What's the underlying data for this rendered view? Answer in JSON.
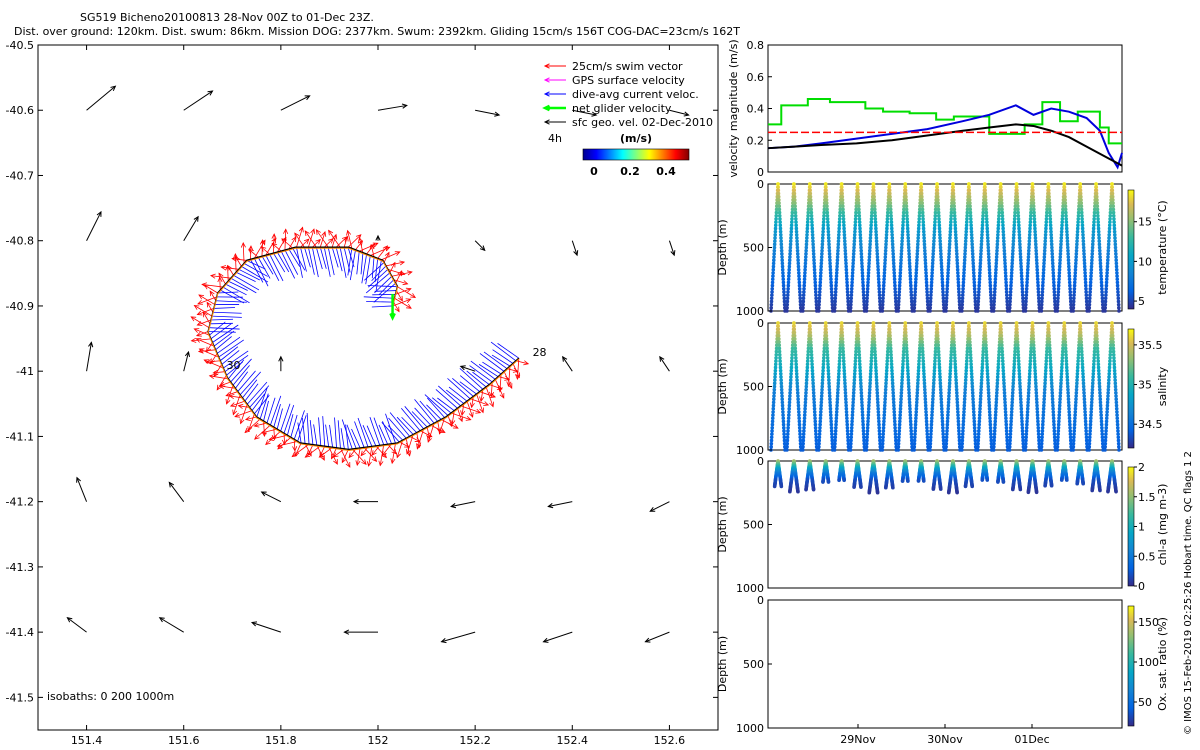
{
  "header": {
    "title_line1": "SG519 Bicheno20100813 28-Nov 00Z to 01-Dec 23Z.",
    "title_line2": "Dist. over ground: 120km. Dist. swum: 86km. Mission DOG: 2377km. Swum: 2392km. Gliding 15cm/s 156T COG-DAC=23cm/s 162T"
  },
  "side_note": "© IMOS 15-Feb-2019 02:25:26 Hobart time. QC flags 1  2",
  "chart_data": [
    {
      "type": "scatter",
      "id": "track_map",
      "xlim": [
        151.3,
        152.7
      ],
      "ylim": [
        -41.55,
        -40.5
      ],
      "xticks": [
        "151.4",
        "151.6",
        "151.8",
        "152",
        "152.2",
        "152.4",
        "152.6"
      ],
      "yticks": [
        "-40.5",
        "-40.6",
        "-40.7",
        "-40.8",
        "-40.9",
        "-41",
        "-41.1",
        "-41.2",
        "-41.3",
        "-41.4",
        "-41.5"
      ],
      "legend": {
        "placement": "top-right",
        "entries": [
          {
            "label": "25cm/s swim vector",
            "color": "#ff0000"
          },
          {
            "label": "GPS surface velocity",
            "color": "#ff00ff"
          },
          {
            "label": "dive-avg current veloc.",
            "color": "#0000ff"
          },
          {
            "label": "net glider velocity",
            "color": "#00ff00"
          },
          {
            "label": "sfc geo. vel. 02-Dec-2010",
            "color": "#000000"
          }
        ],
        "scale_label": "4h",
        "colorbar_label": "(m/s)",
        "colorbar_ticks": [
          "0",
          "0.2",
          "0.4"
        ]
      },
      "annotations": [
        {
          "text": "28",
          "lon": 152.31,
          "lat": -40.98
        },
        {
          "text": "30",
          "lon": 151.68,
          "lat": -41.0
        }
      ],
      "isobaths_label": "isobaths: 0   200   1000m",
      "track": [
        [
          152.29,
          -40.98
        ],
        [
          152.23,
          -41.02
        ],
        [
          152.14,
          -41.07
        ],
        [
          152.04,
          -41.11
        ],
        [
          151.94,
          -41.12
        ],
        [
          151.84,
          -41.11
        ],
        [
          151.75,
          -41.07
        ],
        [
          151.69,
          -41.01
        ],
        [
          151.65,
          -40.94
        ],
        [
          151.67,
          -40.88
        ],
        [
          151.73,
          -40.83
        ],
        [
          151.83,
          -40.81
        ],
        [
          151.94,
          -40.81
        ],
        [
          152.01,
          -40.83
        ],
        [
          152.04,
          -40.87
        ],
        [
          152.03,
          -40.9
        ]
      ],
      "geo_vectors": [
        [
          151.4,
          -40.6,
          0.06,
          0.05
        ],
        [
          151.6,
          -40.6,
          0.06,
          0.04
        ],
        [
          151.8,
          -40.6,
          0.06,
          0.03
        ],
        [
          152.0,
          -40.6,
          0.06,
          0.01
        ],
        [
          152.2,
          -40.6,
          0.05,
          -0.01
        ],
        [
          152.4,
          -40.6,
          0.05,
          -0.01
        ],
        [
          152.6,
          -40.6,
          0.04,
          -0.01
        ],
        [
          151.4,
          -40.8,
          0.03,
          0.06
        ],
        [
          151.6,
          -40.8,
          0.03,
          0.05
        ],
        [
          152.0,
          -40.8,
          0.0,
          0.01
        ],
        [
          152.2,
          -40.8,
          0.02,
          -0.02
        ],
        [
          152.4,
          -40.8,
          0.01,
          -0.03
        ],
        [
          152.6,
          -40.8,
          0.01,
          -0.03
        ],
        [
          151.4,
          -41.0,
          0.01,
          0.06
        ],
        [
          151.6,
          -41.0,
          0.01,
          0.04
        ],
        [
          151.8,
          -41.0,
          0.0,
          0.03
        ],
        [
          152.2,
          -41.0,
          -0.03,
          0.01
        ],
        [
          152.4,
          -41.0,
          -0.02,
          0.03
        ],
        [
          152.6,
          -41.0,
          -0.02,
          0.03
        ],
        [
          151.4,
          -41.2,
          -0.02,
          0.05
        ],
        [
          151.6,
          -41.2,
          -0.03,
          0.04
        ],
        [
          151.8,
          -41.2,
          -0.04,
          0.02
        ],
        [
          152.0,
          -41.2,
          -0.05,
          0.0
        ],
        [
          152.2,
          -41.2,
          -0.05,
          -0.01
        ],
        [
          152.4,
          -41.2,
          -0.05,
          -0.01
        ],
        [
          152.6,
          -41.2,
          -0.04,
          -0.02
        ],
        [
          151.4,
          -41.4,
          -0.04,
          0.03
        ],
        [
          151.6,
          -41.4,
          -0.05,
          0.03
        ],
        [
          151.8,
          -41.4,
          -0.06,
          0.02
        ],
        [
          152.0,
          -41.4,
          -0.07,
          0.0
        ],
        [
          152.2,
          -41.4,
          -0.07,
          -0.02
        ],
        [
          152.4,
          -41.4,
          -0.06,
          -0.02
        ],
        [
          152.6,
          -41.4,
          -0.05,
          -0.02
        ]
      ]
    },
    {
      "type": "line",
      "id": "velocity_panel",
      "ylabel": "velocity magnitude (m/s)",
      "xlim": [
        0,
        4
      ],
      "ylim": [
        0,
        0.8
      ],
      "yticks": [
        "0",
        "0.2",
        "0.4",
        "0.6",
        "0.8"
      ],
      "series": [
        {
          "color": "#00dd00",
          "x": [
            0,
            0.15,
            0.15,
            0.45,
            0.45,
            0.7,
            0.7,
            1.1,
            1.1,
            1.3,
            1.3,
            1.6,
            1.6,
            1.9,
            1.9,
            2.1,
            2.1,
            2.5,
            2.5,
            2.9,
            2.9,
            3.1,
            3.1,
            3.3,
            3.3,
            3.5,
            3.5,
            3.75,
            3.75,
            3.85,
            3.85,
            4.0
          ],
          "y": [
            0.3,
            0.3,
            0.42,
            0.42,
            0.46,
            0.46,
            0.44,
            0.44,
            0.4,
            0.4,
            0.38,
            0.38,
            0.37,
            0.37,
            0.33,
            0.33,
            0.35,
            0.35,
            0.24,
            0.24,
            0.3,
            0.3,
            0.44,
            0.44,
            0.32,
            0.32,
            0.38,
            0.38,
            0.28,
            0.28,
            0.18,
            0.18
          ]
        },
        {
          "color": "#0000dd",
          "x": [
            0,
            0.3,
            0.6,
            1.0,
            1.4,
            1.8,
            2.2,
            2.5,
            2.8,
            3.0,
            3.2,
            3.4,
            3.6,
            3.75,
            3.85,
            3.95,
            4.0
          ],
          "y": [
            0.15,
            0.16,
            0.18,
            0.21,
            0.24,
            0.27,
            0.32,
            0.36,
            0.42,
            0.36,
            0.4,
            0.38,
            0.34,
            0.26,
            0.12,
            0.03,
            0.12
          ]
        },
        {
          "color": "#000000",
          "x": [
            0,
            0.3,
            0.6,
            1.0,
            1.4,
            1.8,
            2.2,
            2.5,
            2.8,
            3.0,
            3.2,
            3.4,
            3.6,
            3.8,
            4.0
          ],
          "y": [
            0.15,
            0.16,
            0.17,
            0.18,
            0.2,
            0.23,
            0.26,
            0.28,
            0.3,
            0.29,
            0.26,
            0.22,
            0.16,
            0.1,
            0.04
          ]
        },
        {
          "color": "#ff0000",
          "x": [
            0,
            4.0
          ],
          "y": [
            0.25,
            0.25
          ]
        }
      ]
    },
    {
      "type": "scatter",
      "id": "temperature_panel",
      "ylabel": "Depth (m)",
      "ylim": [
        0,
        1000
      ],
      "yticks": [
        "0",
        "500",
        "1000"
      ],
      "colorbar_label": "temperature (°C)",
      "colorbar_ticks": [
        "5",
        "10",
        "15"
      ],
      "colormap": "parula",
      "color_range": [
        4,
        19
      ],
      "profiles": 22,
      "max_depth": 1000,
      "color_profile": [
        [
          0,
          18.5
        ],
        [
          60,
          17
        ],
        [
          150,
          15
        ],
        [
          220,
          13
        ],
        [
          350,
          10
        ],
        [
          550,
          8
        ],
        [
          1000,
          4.5
        ]
      ]
    },
    {
      "type": "scatter",
      "id": "salinity_panel",
      "ylabel": "Depth (m)",
      "ylim": [
        0,
        1000
      ],
      "yticks": [
        "0",
        "500",
        "1000"
      ],
      "colorbar_label": "salinity",
      "colorbar_ticks": [
        "34.5",
        "35",
        "35.5"
      ],
      "colormap": "parula",
      "color_range": [
        34.2,
        35.7
      ],
      "profiles": 22,
      "max_depth": 1000,
      "color_profile": [
        [
          0,
          35.6
        ],
        [
          100,
          35.4
        ],
        [
          200,
          35.1
        ],
        [
          350,
          34.9
        ],
        [
          550,
          34.6
        ],
        [
          1000,
          34.4
        ]
      ]
    },
    {
      "type": "scatter",
      "id": "chla_panel",
      "ylabel": "Depth (m)",
      "ylim": [
        0,
        1000
      ],
      "yticks": [
        "0",
        "500",
        "1000"
      ],
      "colorbar_label": "chl-a (mg m-3)",
      "colorbar_ticks": [
        "0",
        "0.5",
        "1",
        "1.5",
        "2"
      ],
      "colormap": "parula",
      "color_range": [
        0,
        2
      ],
      "profiles": 22,
      "max_depth": 250,
      "color_profile": [
        [
          0,
          1.6
        ],
        [
          30,
          1.3
        ],
        [
          60,
          0.9
        ],
        [
          100,
          0.5
        ],
        [
          150,
          0.2
        ],
        [
          250,
          0.05
        ]
      ]
    },
    {
      "type": "scatter",
      "id": "oxygen_panel",
      "ylabel": "Depth (m)",
      "ylim": [
        0,
        1000
      ],
      "yticks": [
        "0",
        "500",
        "1000"
      ],
      "xticks": [
        "29Nov",
        "30Nov",
        "01Dec"
      ],
      "colorbar_label": "Ox. sat. ratio (%)",
      "colorbar_ticks": [
        "50",
        "100",
        "150"
      ],
      "colormap": "parula",
      "color_range": [
        20,
        170
      ],
      "profiles": 0
    }
  ]
}
